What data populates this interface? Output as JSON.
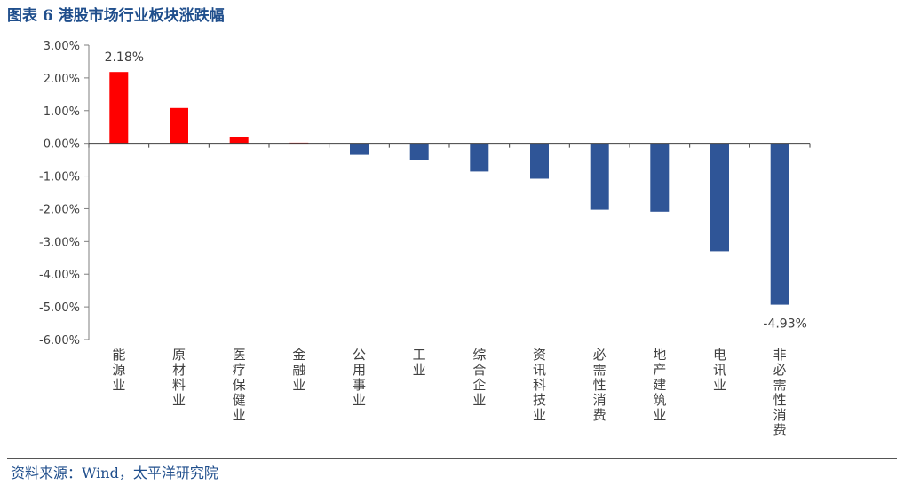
{
  "title": "图表 6 港股市场行业板块涨跌幅",
  "source": "资料来源：Wind，太平洋研究院",
  "colors": {
    "positive": "#ff0000",
    "negative": "#2f5597",
    "title": "#1f4e8c"
  },
  "chart_data": {
    "type": "bar",
    "title": "",
    "xlabel": "",
    "ylabel": "",
    "ylim": [
      -6,
      3
    ],
    "y_ticks": [
      3,
      2,
      1,
      0,
      -1,
      -2,
      -3,
      -4,
      -5,
      -6
    ],
    "y_tick_labels": [
      "3.00%",
      "2.00%",
      "1.00%",
      "0.00%",
      "-1.00%",
      "-2.00%",
      "-3.00%",
      "-4.00%",
      "-5.00%",
      "-6.00%"
    ],
    "grid": false,
    "categories": [
      "能源业",
      "原材料业",
      "医疗保健业",
      "金融业",
      "公用事业",
      "工业",
      "综合企业",
      "资讯科技业",
      "必需性消费",
      "地产建筑业",
      "电讯业",
      "非必需性消费"
    ],
    "values": [
      2.18,
      1.08,
      0.18,
      0.02,
      -0.35,
      -0.5,
      -0.86,
      -1.08,
      -2.03,
      -2.09,
      -3.3,
      -4.93
    ],
    "data_labels": [
      {
        "index": 0,
        "text": "2.18%"
      },
      {
        "index": 11,
        "text": "-4.93%"
      }
    ]
  }
}
